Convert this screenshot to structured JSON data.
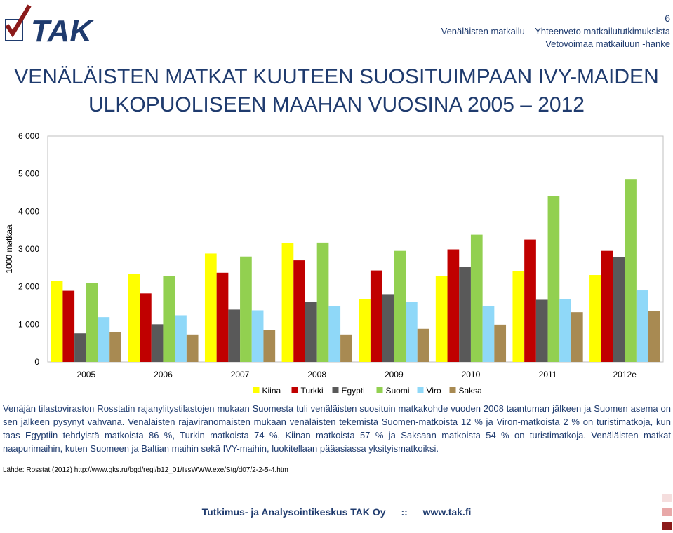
{
  "header": {
    "page_number": "6",
    "line1": "Venäläisten matkailu – Yhteenveto matkailututkimuksista",
    "line2": "Vetovoimaa matkailuun -hanke",
    "logo_text": "TAK"
  },
  "title": {
    "line1": "VENÄLÄISTEN MATKAT KUUTEEN SUOSITUIMPAAN IVY-MAIDEN",
    "line2": "ULKOPUOLISEEN MAAHAN VUOSINA 2005 – 2012"
  },
  "chart_data": {
    "type": "bar",
    "categories": [
      "2005",
      "2006",
      "2007",
      "2008",
      "2009",
      "2010",
      "2011",
      "2012e"
    ],
    "series": [
      {
        "name": "Kiina",
        "color": "#ffff00",
        "values": [
          2150,
          2340,
          2880,
          3150,
          1660,
          2280,
          2420,
          2310
        ]
      },
      {
        "name": "Turkki",
        "color": "#c00000",
        "values": [
          1890,
          1820,
          2370,
          2700,
          2430,
          2990,
          3250,
          2950
        ]
      },
      {
        "name": "Egypti",
        "color": "#595959",
        "values": [
          760,
          1000,
          1390,
          1590,
          1800,
          2530,
          1650,
          2790
        ]
      },
      {
        "name": "Suomi",
        "color": "#92d050",
        "values": [
          2090,
          2290,
          2800,
          3170,
          2950,
          3380,
          4400,
          4860
        ]
      },
      {
        "name": "Viro",
        "color": "#8fd8f8",
        "values": [
          1190,
          1240,
          1370,
          1480,
          1600,
          1480,
          1670,
          1900
        ]
      },
      {
        "name": "Saksa",
        "color": "#a88a52",
        "values": [
          800,
          730,
          850,
          730,
          880,
          990,
          1320,
          1350
        ]
      }
    ],
    "yticks": [
      "0",
      "1 000",
      "2 000",
      "3 000",
      "4 000",
      "5 000",
      "6 000"
    ],
    "ylabel": "1000 matkaa",
    "xlabel": "",
    "ylim": [
      0,
      6000
    ],
    "grid": false,
    "legend_position": "bottom"
  },
  "body_text": "Venäjän tilastoviraston Rosstatin rajanylitystilastojen mukaan Suomesta tuli venäläisten suosituin matkakohde vuoden 2008 taantuman jälkeen ja Suomen asema on sen jälkeen pysynyt vahvana. Venäläisten rajaviranomaisten mukaan venäläisten tekemistä Suomen-matkoista 12 % ja Viron-matkoista 2 % on turistimatkoja, kun taas Egyptiin tehdyistä matkoista 86 %, Turkin matkoista 74 %, Kiinan matkoista 57 % ja Saksaan matkoista 54 % on turistimatkoja. Venäläisten matkat naapurimaihin, kuten Suomeen ja Baltian maihin sekä IVY-maihin, luokitellaan pääasiassa yksityismatkoiksi.",
  "source": "Lähde: Rosstat (2012) http://www.gks.ru/bgd/regl/b12_01/IssWWW.exe/Stg/d07/2-2-5-4.htm",
  "footer": {
    "org": "Tutkimus- ja Analysointikeskus TAK Oy",
    "separator": "::",
    "url": "www.tak.fi"
  },
  "colors": {
    "brand_blue": "#1f3b6e",
    "accent_red": "#8b1a1a",
    "square_light": "#f5dede",
    "square_mid": "#e8a8a8",
    "square_dark": "#8b1a1a"
  }
}
